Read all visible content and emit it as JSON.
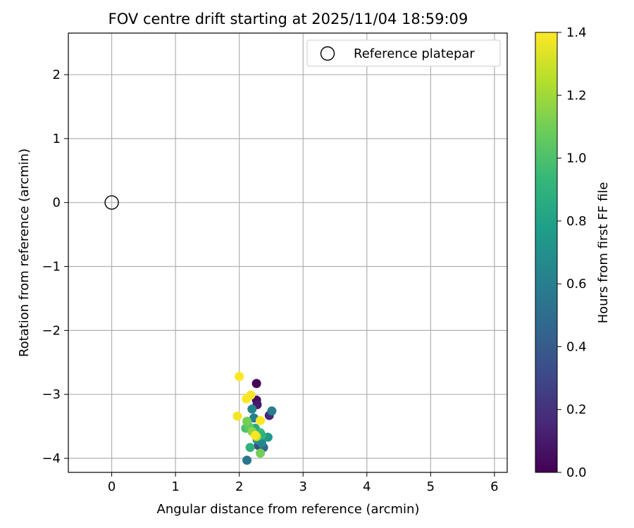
{
  "chart_data": {
    "type": "scatter",
    "title": "FOV centre drift starting at 2025/11/04 18:59:09",
    "xlabel": "Angular distance from reference (arcmin)",
    "ylabel": "Rotation from reference (arcmin)",
    "xlim": [
      -0.68,
      6.2
    ],
    "ylim": [
      -4.22,
      2.65
    ],
    "x_ticks": [
      0,
      1,
      2,
      3,
      4,
      5,
      6
    ],
    "y_ticks": [
      -4,
      -3,
      -2,
      -1,
      0,
      1,
      2
    ],
    "x_tick_labels": [
      "0",
      "1",
      "2",
      "3",
      "4",
      "5",
      "6"
    ],
    "y_tick_labels": [
      "−4",
      "−3",
      "−2",
      "−1",
      "0",
      "1",
      "2"
    ],
    "grid": true,
    "legend": {
      "position": "top-right",
      "entries": [
        {
          "label": "Reference platepar",
          "marker": "open-circle"
        }
      ]
    },
    "colorbar": {
      "label": "Hours from first FF file",
      "colormap": "viridis",
      "range": [
        0.0,
        1.4
      ],
      "ticks": [
        0.0,
        0.2,
        0.4,
        0.6,
        0.8,
        1.0,
        1.2,
        1.4
      ],
      "tick_labels": [
        "0.0",
        "0.2",
        "0.4",
        "0.6",
        "0.8",
        "1.0",
        "1.2",
        "1.4"
      ]
    },
    "reference_point": {
      "x": 0,
      "y": 0
    },
    "series": [
      {
        "points": [
          {
            "x": 2.27,
            "y": -2.83,
            "t": 0.0
          },
          {
            "x": 2.27,
            "y": -3.09,
            "t": 0.05
          },
          {
            "x": 2.28,
            "y": -3.16,
            "t": 0.1
          },
          {
            "x": 2.47,
            "y": -3.33,
            "t": 0.15
          },
          {
            "x": 2.3,
            "y": -3.8,
            "t": 0.3
          },
          {
            "x": 2.38,
            "y": -3.83,
            "t": 0.45
          },
          {
            "x": 2.12,
            "y": -4.03,
            "t": 0.55
          },
          {
            "x": 2.51,
            "y": -3.26,
            "t": 0.6
          },
          {
            "x": 2.2,
            "y": -3.23,
            "t": 0.65
          },
          {
            "x": 2.23,
            "y": -3.37,
            "t": 0.6
          },
          {
            "x": 2.28,
            "y": -3.71,
            "t": 0.7
          },
          {
            "x": 2.35,
            "y": -3.76,
            "t": 0.65
          },
          {
            "x": 2.45,
            "y": -3.67,
            "t": 0.75
          },
          {
            "x": 2.17,
            "y": -3.83,
            "t": 0.9
          },
          {
            "x": 2.25,
            "y": -3.53,
            "t": 0.85
          },
          {
            "x": 2.33,
            "y": -3.6,
            "t": 0.95
          },
          {
            "x": 2.35,
            "y": -3.64,
            "t": 0.9
          },
          {
            "x": 2.1,
            "y": -3.53,
            "t": 1.0
          },
          {
            "x": 2.15,
            "y": -3.5,
            "t": 1.05
          },
          {
            "x": 2.12,
            "y": -3.42,
            "t": 1.1
          },
          {
            "x": 2.2,
            "y": -3.58,
            "t": 1.15
          },
          {
            "x": 2.33,
            "y": -3.92,
            "t": 1.1
          },
          {
            "x": 2.27,
            "y": -3.66,
            "t": 1.25
          },
          {
            "x": 2.0,
            "y": -2.72,
            "t": 1.4
          },
          {
            "x": 2.18,
            "y": -3.01,
            "t": 1.38
          },
          {
            "x": 2.11,
            "y": -3.07,
            "t": 1.4
          },
          {
            "x": 1.97,
            "y": -3.34,
            "t": 1.38
          },
          {
            "x": 2.33,
            "y": -3.41,
            "t": 1.4
          },
          {
            "x": 2.25,
            "y": -3.64,
            "t": 1.39
          }
        ]
      }
    ]
  }
}
